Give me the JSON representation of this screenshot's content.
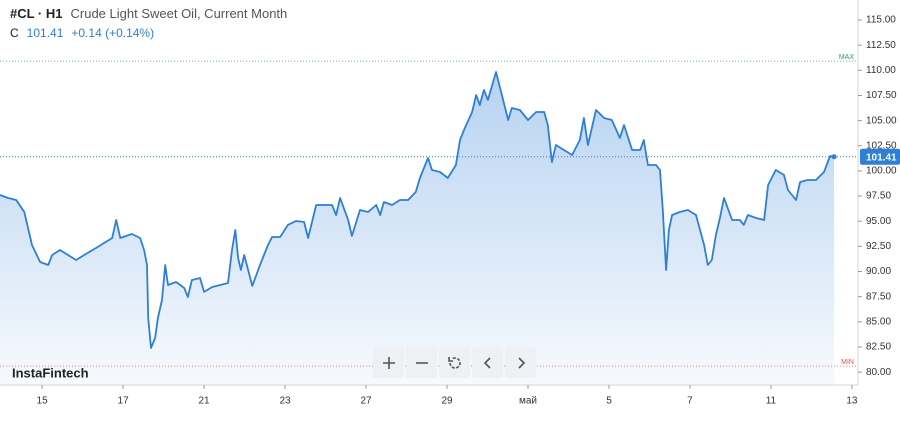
{
  "chart_data": {
    "type": "line",
    "symbol": "#CL · H1",
    "title": "Crude Light Sweet Oil, Current Month",
    "close_prefix": "C",
    "close": 101.41,
    "change": "+0.14 (+0.14%)",
    "watermark": "InstaFintech",
    "max_label": "MAX",
    "max": 110.92,
    "min_label": "MIN",
    "min": 80.6,
    "xlim": [
      -1.04,
      20.15
    ],
    "ylim": [
      78.72,
      116.99
    ],
    "xticks": [
      {
        "value": 0,
        "label": "15"
      },
      {
        "value": 2,
        "label": "17"
      },
      {
        "value": 4,
        "label": "21"
      },
      {
        "value": 6,
        "label": "23"
      },
      {
        "value": 8,
        "label": "27"
      },
      {
        "value": 10,
        "label": "29"
      },
      {
        "value": 12,
        "label": "май"
      },
      {
        "value": 14,
        "label": "5"
      },
      {
        "value": 16,
        "label": "7"
      },
      {
        "value": 18,
        "label": "11"
      },
      {
        "value": 20,
        "label": "13"
      }
    ],
    "yticks": [
      {
        "value": 80,
        "label": "80.00"
      },
      {
        "value": 82.5,
        "label": "82.50"
      },
      {
        "value": 85,
        "label": "85.00"
      },
      {
        "value": 87.5,
        "label": "87.50"
      },
      {
        "value": 90,
        "label": "90.00"
      },
      {
        "value": 92.5,
        "label": "92.50"
      },
      {
        "value": 95,
        "label": "95.00"
      },
      {
        "value": 97.5,
        "label": "97.50"
      },
      {
        "value": 100,
        "label": "100.00"
      },
      {
        "value": 102.5,
        "label": "102.50"
      },
      {
        "value": 105,
        "label": "105.00"
      },
      {
        "value": 107.5,
        "label": "107.50"
      },
      {
        "value": 110,
        "label": "110.00"
      },
      {
        "value": 112.5,
        "label": "112.50"
      },
      {
        "value": 115,
        "label": "115.00"
      }
    ],
    "series": [
      {
        "color": "#2f7fd6",
        "x": [
          -1.04,
          -0.84,
          -0.64,
          -0.44,
          -0.25,
          -0.05,
          0.15,
          0.25,
          0.44,
          0.64,
          0.84,
          1.04,
          1.33,
          1.53,
          1.73,
          1.83,
          1.93,
          2.22,
          2.42,
          2.52,
          2.59,
          2.62,
          2.69,
          2.79,
          2.86,
          2.96,
          3.04,
          3.11,
          3.31,
          3.51,
          3.6,
          3.7,
          3.9,
          4.0,
          4.2,
          4.4,
          4.59,
          4.69,
          4.77,
          4.84,
          4.91,
          4.99,
          5.19,
          5.38,
          5.58,
          5.68,
          5.88,
          6.07,
          6.27,
          6.47,
          6.57,
          6.77,
          6.96,
          7.16,
          7.26,
          7.36,
          7.56,
          7.65,
          7.85,
          8.05,
          8.25,
          8.35,
          8.44,
          8.64,
          8.84,
          9.04,
          9.23,
          9.33,
          9.53,
          9.63,
          9.83,
          10.02,
          10.22,
          10.32,
          10.42,
          10.62,
          10.72,
          10.81,
          10.91,
          11.01,
          11.21,
          11.31,
          11.51,
          11.6,
          11.8,
          12.0,
          12.2,
          12.4,
          12.49,
          12.59,
          12.69,
          12.89,
          13.09,
          13.28,
          13.38,
          13.48,
          13.68,
          13.88,
          14.07,
          14.27,
          14.37,
          14.57,
          14.77,
          14.86,
          14.96,
          15.16,
          15.26,
          15.33,
          15.41,
          15.48,
          15.56,
          15.75,
          15.95,
          16.15,
          16.35,
          16.44,
          16.54,
          16.64,
          16.74,
          16.84,
          17.04,
          17.23,
          17.33,
          17.43,
          17.63,
          17.83,
          17.93,
          18.12,
          18.32,
          18.42,
          18.62,
          18.72,
          18.91,
          19.11,
          19.31,
          19.46,
          19.56
        ],
        "values": [
          97.61,
          97.31,
          97.11,
          95.92,
          92.64,
          90.95,
          90.65,
          91.64,
          92.14,
          91.64,
          91.15,
          91.64,
          92.34,
          92.84,
          93.33,
          95.12,
          93.33,
          93.73,
          93.33,
          92.14,
          90.65,
          85.38,
          82.4,
          83.39,
          85.38,
          87.17,
          90.65,
          88.66,
          88.96,
          88.36,
          87.47,
          89.16,
          89.36,
          87.97,
          88.46,
          88.66,
          88.86,
          92.14,
          94.13,
          91.34,
          90.15,
          91.64,
          88.56,
          90.65,
          92.64,
          93.43,
          93.43,
          94.63,
          95.02,
          94.92,
          93.33,
          96.61,
          96.61,
          96.61,
          95.62,
          97.31,
          95.12,
          93.53,
          96.12,
          95.92,
          96.61,
          95.62,
          96.91,
          96.61,
          97.11,
          97.11,
          97.91,
          99.3,
          101.28,
          100.09,
          99.89,
          99.3,
          100.59,
          103.07,
          104.07,
          105.86,
          107.55,
          106.55,
          108.04,
          107.05,
          109.83,
          108.24,
          105.06,
          106.25,
          106.06,
          105.06,
          105.86,
          105.86,
          104.56,
          100.89,
          102.58,
          102.08,
          101.58,
          103.07,
          105.26,
          102.58,
          106.06,
          105.26,
          105.06,
          103.27,
          104.56,
          102.08,
          102.08,
          103.07,
          100.59,
          100.59,
          100.09,
          96.12,
          90.15,
          94.13,
          95.62,
          95.92,
          96.12,
          95.62,
          92.64,
          90.65,
          91.15,
          93.63,
          95.31,
          97.31,
          95.12,
          95.12,
          94.63,
          95.62,
          95.32,
          95.12,
          98.6,
          100.09,
          99.6,
          98.1,
          97.11,
          98.9,
          99.1,
          99.1,
          99.89,
          101.48,
          101.41
        ]
      }
    ]
  }
}
